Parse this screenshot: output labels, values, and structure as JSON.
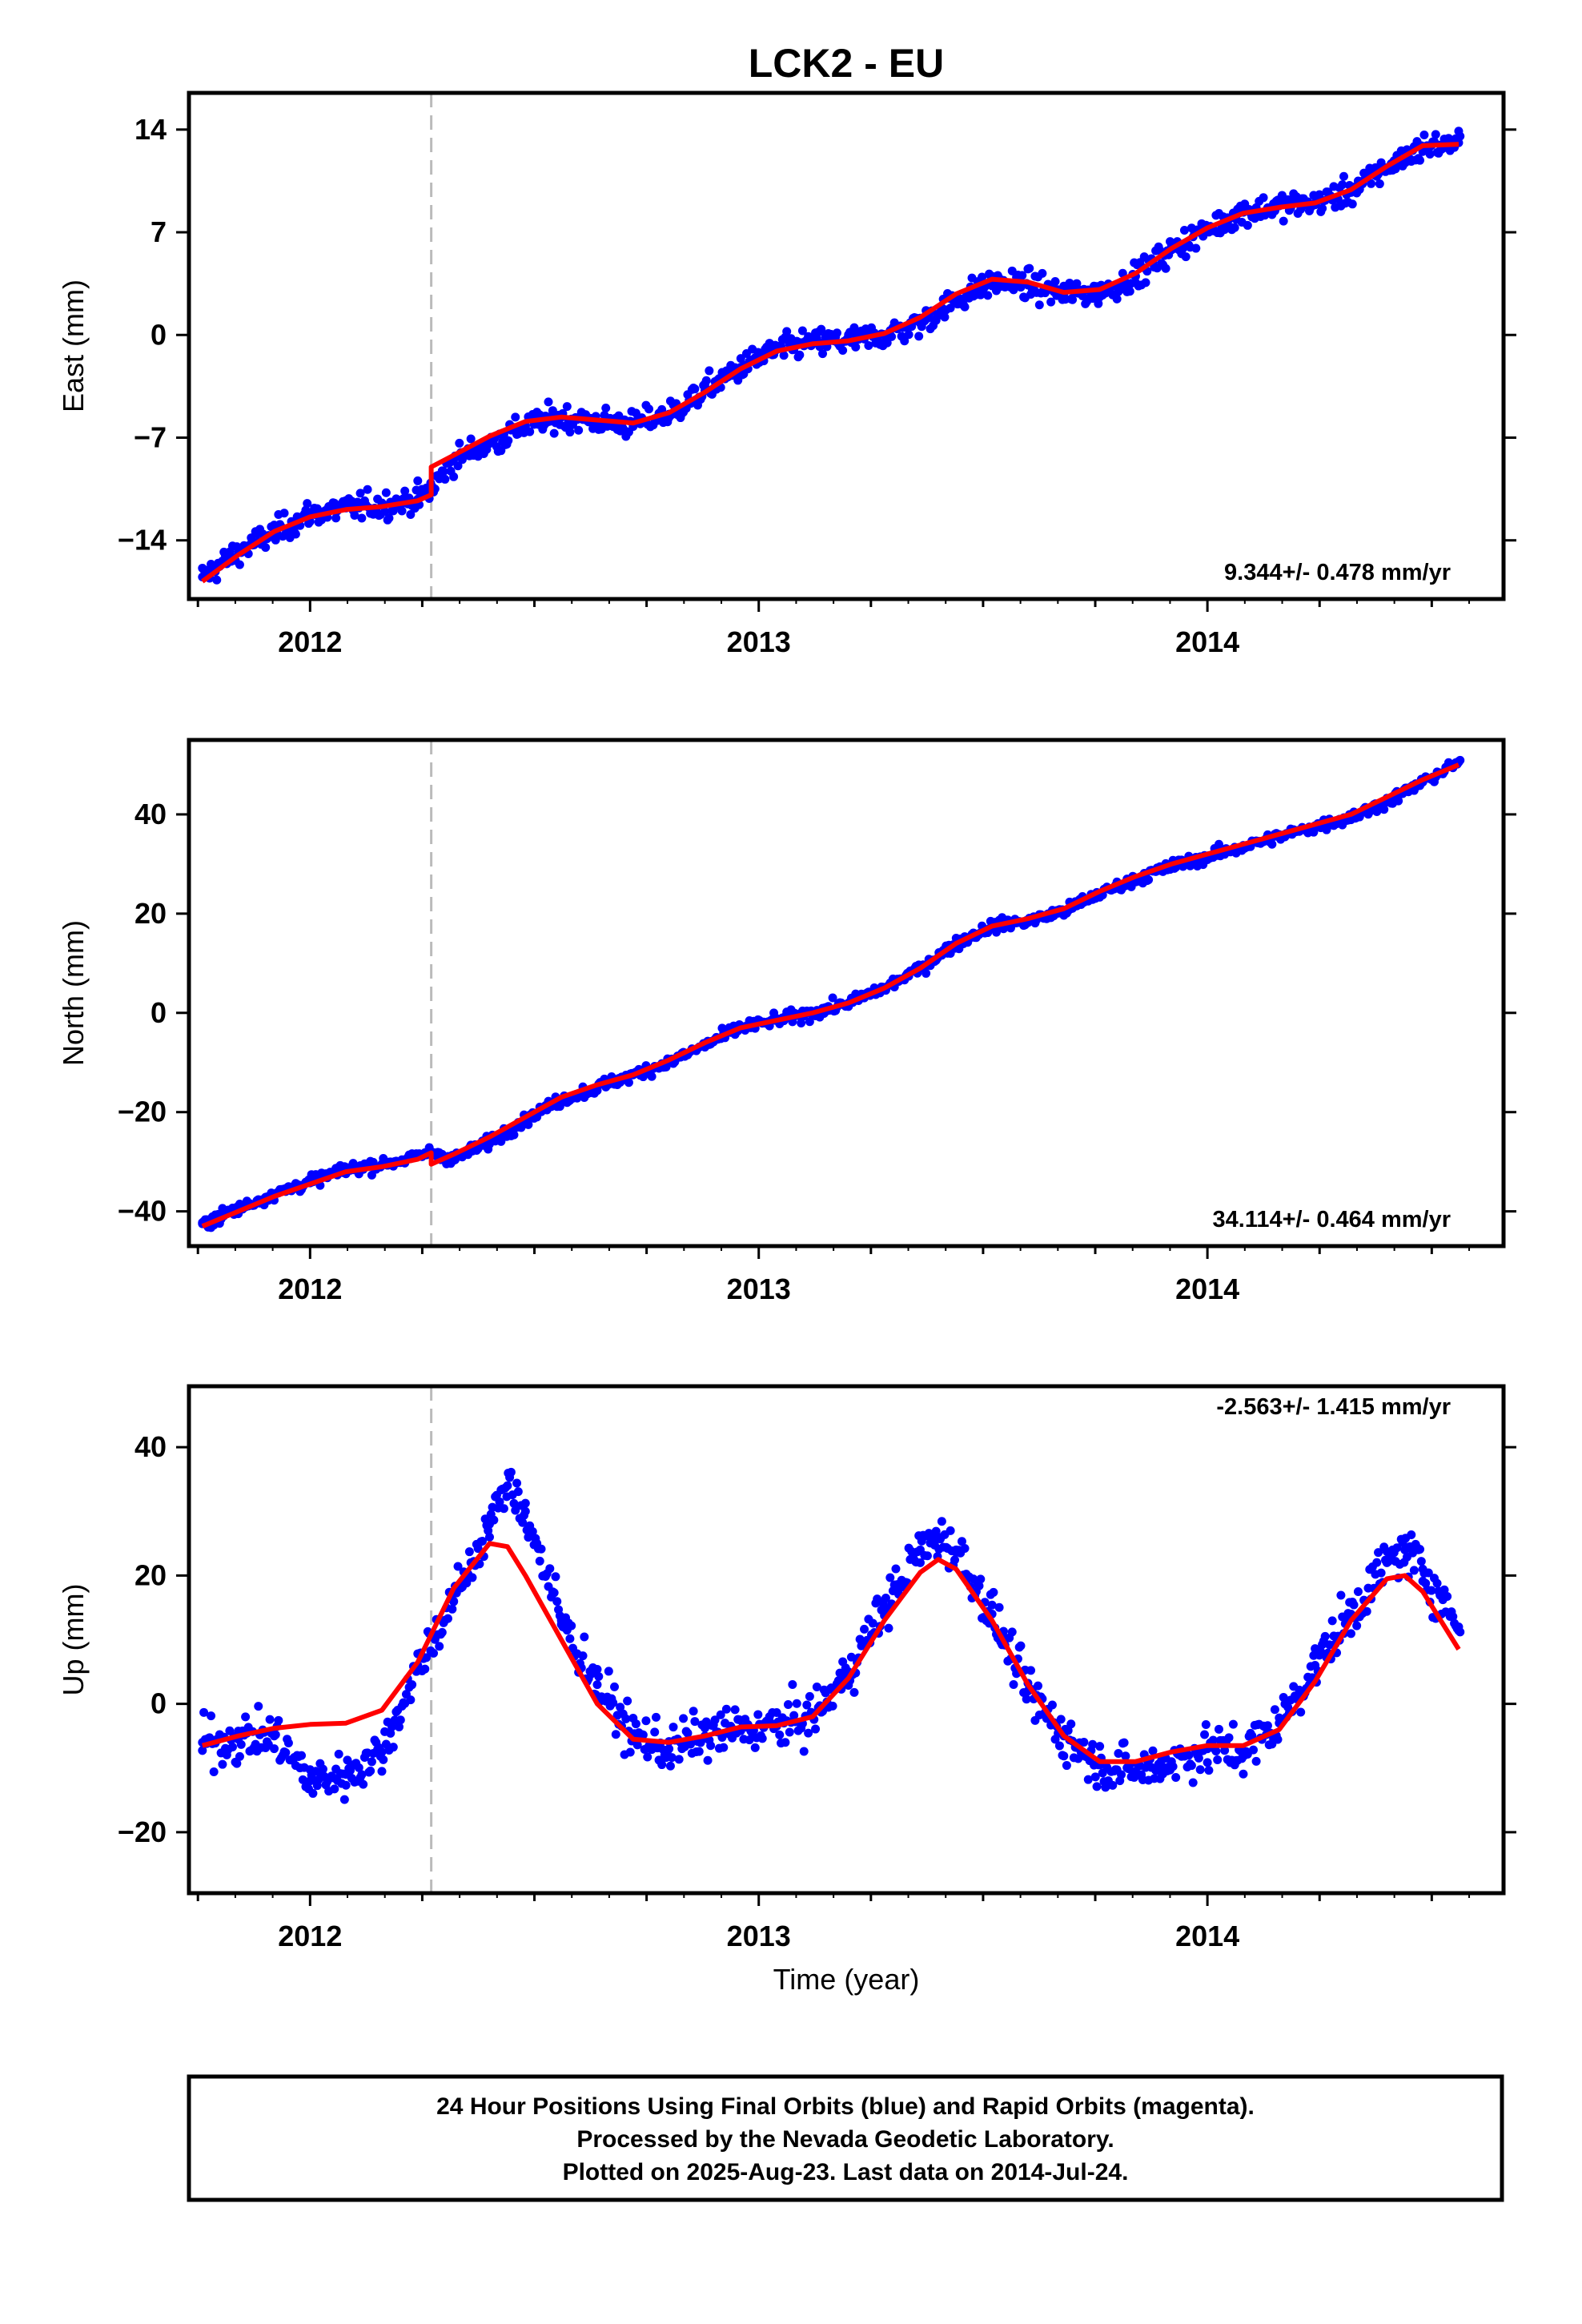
{
  "chart_title": "LCK2 - EU",
  "xlabel": "Time (year)",
  "colors": {
    "points": "#0000ff",
    "fit": "#ff0000",
    "event_line": "#bbbbbb",
    "frame": "#000000"
  },
  "footer": {
    "line1": "24 Hour Positions Using Final Orbits (blue) and Rapid Orbits (magenta).",
    "line2": "Processed by the Nevada Geodetic Laboratory.",
    "line3": "Plotted on 2025-Aug-23. Last data on 2014-Jul-24."
  },
  "chart_data": [
    {
      "type": "scatter",
      "component": "east",
      "ylabel": "East (mm)",
      "xlim": [
        2011.73,
        2014.66
      ],
      "ylim": [
        -18,
        16.5
      ],
      "yticks": [
        -14,
        -7,
        0,
        7,
        14
      ],
      "ytick_labels": [
        "−14",
        "−7",
        "0",
        "7",
        "14"
      ],
      "xticks": [
        2012,
        2013,
        2014
      ],
      "xtick_labels": [
        "2012",
        "2013",
        "2014"
      ],
      "rate_label": "9.344+/- 0.478 mm/yr",
      "event_line_x": 2012.27,
      "series": [
        {
          "kind": "points",
          "x": [
            2011.76,
            2011.84,
            2011.92,
            2012.0,
            2012.08,
            2012.16,
            2012.24,
            2012.27,
            2012.32,
            2012.4,
            2012.48,
            2012.56,
            2012.64,
            2012.72,
            2012.8,
            2012.88,
            2012.96,
            2013.04,
            2013.12,
            2013.2,
            2013.28,
            2013.36,
            2013.44,
            2013.52,
            2013.6,
            2013.68,
            2013.76,
            2013.84,
            2013.92,
            2014.0,
            2014.08,
            2014.16,
            2014.24,
            2014.32,
            2014.4,
            2014.48,
            2014.56
          ],
          "y": [
            -16.5,
            -14.8,
            -13.5,
            -12.2,
            -11.8,
            -11.6,
            -11.2,
            -10.5,
            -8.5,
            -7.4,
            -6.2,
            -5.6,
            -5.9,
            -6.1,
            -5.4,
            -3.8,
            -2.2,
            -1.0,
            -0.5,
            -0.4,
            0.0,
            0.8,
            2.4,
            3.6,
            3.4,
            2.8,
            2.9,
            4.0,
            5.8,
            7.2,
            8.4,
            8.8,
            9.0,
            9.8,
            11.4,
            12.8,
            13.1
          ]
        },
        {
          "kind": "fit",
          "x": [
            2011.76,
            2011.84,
            2011.92,
            2012.0,
            2012.08,
            2012.16,
            2012.24,
            2012.27,
            2012.27,
            2012.32,
            2012.4,
            2012.48,
            2012.56,
            2012.64,
            2012.72,
            2012.8,
            2012.88,
            2012.96,
            2013.04,
            2013.12,
            2013.2,
            2013.28,
            2013.36,
            2013.44,
            2013.52,
            2013.6,
            2013.68,
            2013.76,
            2013.84,
            2013.92,
            2014.0,
            2014.08,
            2014.16,
            2014.24,
            2014.32,
            2014.4,
            2014.48,
            2014.56
          ],
          "y": [
            -16.8,
            -15.0,
            -13.4,
            -12.4,
            -11.9,
            -11.7,
            -11.3,
            -10.9,
            -9.0,
            -8.2,
            -6.9,
            -5.9,
            -5.6,
            -5.8,
            -6.0,
            -5.3,
            -3.9,
            -2.3,
            -1.1,
            -0.6,
            -0.4,
            0.1,
            1.2,
            2.8,
            3.8,
            3.6,
            2.9,
            3.1,
            4.2,
            5.9,
            7.3,
            8.3,
            8.7,
            9.0,
            9.9,
            11.5,
            12.9,
            13.0
          ]
        }
      ]
    },
    {
      "type": "scatter",
      "component": "north",
      "ylabel": "North (mm)",
      "xlim": [
        2011.73,
        2014.66
      ],
      "ylim": [
        -47,
        55
      ],
      "yticks": [
        -40,
        -20,
        0,
        20,
        40
      ],
      "ytick_labels": [
        "−40",
        "−20",
        "0",
        "20",
        "40"
      ],
      "xticks": [
        2012,
        2013,
        2014
      ],
      "xtick_labels": [
        "2012",
        "2013",
        "2014"
      ],
      "rate_label": "34.114+/- 0.464 mm/yr",
      "event_line_x": 2012.27,
      "series": [
        {
          "kind": "points",
          "x": [
            2011.76,
            2011.84,
            2011.92,
            2012.0,
            2012.08,
            2012.16,
            2012.24,
            2012.27,
            2012.32,
            2012.4,
            2012.48,
            2012.56,
            2012.64,
            2012.72,
            2012.8,
            2012.88,
            2012.96,
            2013.04,
            2013.12,
            2013.2,
            2013.28,
            2013.36,
            2013.44,
            2013.52,
            2013.6,
            2013.68,
            2013.76,
            2013.84,
            2013.92,
            2014.0,
            2014.08,
            2014.16,
            2014.24,
            2014.32,
            2014.4,
            2014.48,
            2014.56
          ],
          "y": [
            -42.5,
            -39.5,
            -36.5,
            -34.0,
            -31.5,
            -30.5,
            -29.0,
            -28.0,
            -29.5,
            -26.0,
            -21.5,
            -17.5,
            -15.0,
            -12.5,
            -10.0,
            -6.5,
            -3.0,
            -1.5,
            0.0,
            2.0,
            5.0,
            9.0,
            14.0,
            17.5,
            18.5,
            20.5,
            24.0,
            27.0,
            29.5,
            31.5,
            33.5,
            35.5,
            37.5,
            39.5,
            42.5,
            46.5,
            50.5
          ]
        },
        {
          "kind": "fit",
          "x": [
            2011.76,
            2011.84,
            2011.92,
            2012.0,
            2012.08,
            2012.16,
            2012.24,
            2012.27,
            2012.27,
            2012.32,
            2012.4,
            2012.48,
            2012.56,
            2012.64,
            2012.72,
            2012.8,
            2012.88,
            2012.96,
            2013.04,
            2013.12,
            2013.2,
            2013.28,
            2013.36,
            2013.44,
            2013.52,
            2013.6,
            2013.68,
            2013.76,
            2013.84,
            2013.92,
            2014.0,
            2014.08,
            2014.16,
            2014.24,
            2014.32,
            2014.4,
            2014.48,
            2014.56
          ],
          "y": [
            -43.0,
            -40.0,
            -37.0,
            -34.5,
            -32.0,
            -31.0,
            -29.5,
            -28.2,
            -30.5,
            -28.5,
            -25.0,
            -21.0,
            -17.0,
            -14.5,
            -12.5,
            -9.5,
            -6.0,
            -3.0,
            -1.5,
            0.0,
            2.0,
            5.0,
            9.0,
            14.0,
            17.5,
            19.0,
            21.0,
            24.5,
            27.5,
            30.0,
            32.0,
            34.0,
            36.0,
            38.0,
            40.0,
            43.5,
            47.0,
            50.0
          ]
        }
      ]
    },
    {
      "type": "scatter",
      "component": "up",
      "ylabel": "Up (mm)",
      "xlim": [
        2011.73,
        2014.66
      ],
      "ylim": [
        -29.5,
        49.5
      ],
      "yticks": [
        -20,
        0,
        20,
        40
      ],
      "ytick_labels": [
        "−20",
        "0",
        "20",
        "40"
      ],
      "xticks": [
        2012,
        2013,
        2014
      ],
      "xtick_labels": [
        "2012",
        "2013",
        "2014"
      ],
      "rate_label": "-2.563+/- 1.415 mm/yr",
      "event_line_x": 2012.27,
      "series": [
        {
          "kind": "points",
          "x": [
            2011.76,
            2011.84,
            2011.92,
            2012.0,
            2012.08,
            2012.16,
            2012.24,
            2012.32,
            2012.4,
            2012.44,
            2012.48,
            2012.56,
            2012.64,
            2012.72,
            2012.8,
            2012.88,
            2012.96,
            2013.04,
            2013.12,
            2013.2,
            2013.28,
            2013.36,
            2013.4,
            2013.44,
            2013.52,
            2013.6,
            2013.68,
            2013.76,
            2013.84,
            2013.92,
            2014.0,
            2014.08,
            2014.16,
            2014.24,
            2014.32,
            2014.4,
            2014.44,
            2014.48,
            2014.56
          ],
          "y": [
            -6.0,
            -5.5,
            -5.0,
            -12.0,
            -11.0,
            -7.5,
            6.0,
            16.0,
            28.0,
            34.0,
            30.0,
            13.0,
            3.0,
            -5.0,
            -7.0,
            -5.0,
            -4.0,
            -3.5,
            -2.0,
            5.0,
            15.0,
            24.0,
            26.0,
            24.0,
            14.0,
            2.0,
            -5.0,
            -9.5,
            -10.5,
            -9.0,
            -7.0,
            -7.5,
            -3.0,
            6.0,
            14.0,
            22.0,
            24.0,
            21.0,
            12.0
          ]
        },
        {
          "kind": "fit",
          "x": [
            2011.76,
            2011.84,
            2011.92,
            2012.0,
            2012.08,
            2012.16,
            2012.24,
            2012.32,
            2012.4,
            2012.44,
            2012.48,
            2012.56,
            2012.64,
            2012.72,
            2012.8,
            2012.88,
            2012.96,
            2013.04,
            2013.12,
            2013.2,
            2013.28,
            2013.36,
            2013.4,
            2013.44,
            2013.52,
            2013.6,
            2013.68,
            2013.76,
            2013.84,
            2013.92,
            2014.0,
            2014.08,
            2014.16,
            2014.24,
            2014.32,
            2014.4,
            2014.44,
            2014.48,
            2014.56
          ],
          "y": [
            -6.5,
            -5.0,
            -3.8,
            -3.2,
            -3.0,
            -1.0,
            6.5,
            18.0,
            25.0,
            24.5,
            20.0,
            10.0,
            0.0,
            -5.5,
            -6.0,
            -5.0,
            -3.6,
            -3.4,
            -2.0,
            4.0,
            13.0,
            20.5,
            22.5,
            21.0,
            13.0,
            3.0,
            -5.0,
            -9.0,
            -9.0,
            -7.5,
            -6.5,
            -6.5,
            -4.0,
            3.5,
            13.0,
            19.5,
            20.0,
            17.5,
            8.5
          ]
        }
      ]
    }
  ]
}
